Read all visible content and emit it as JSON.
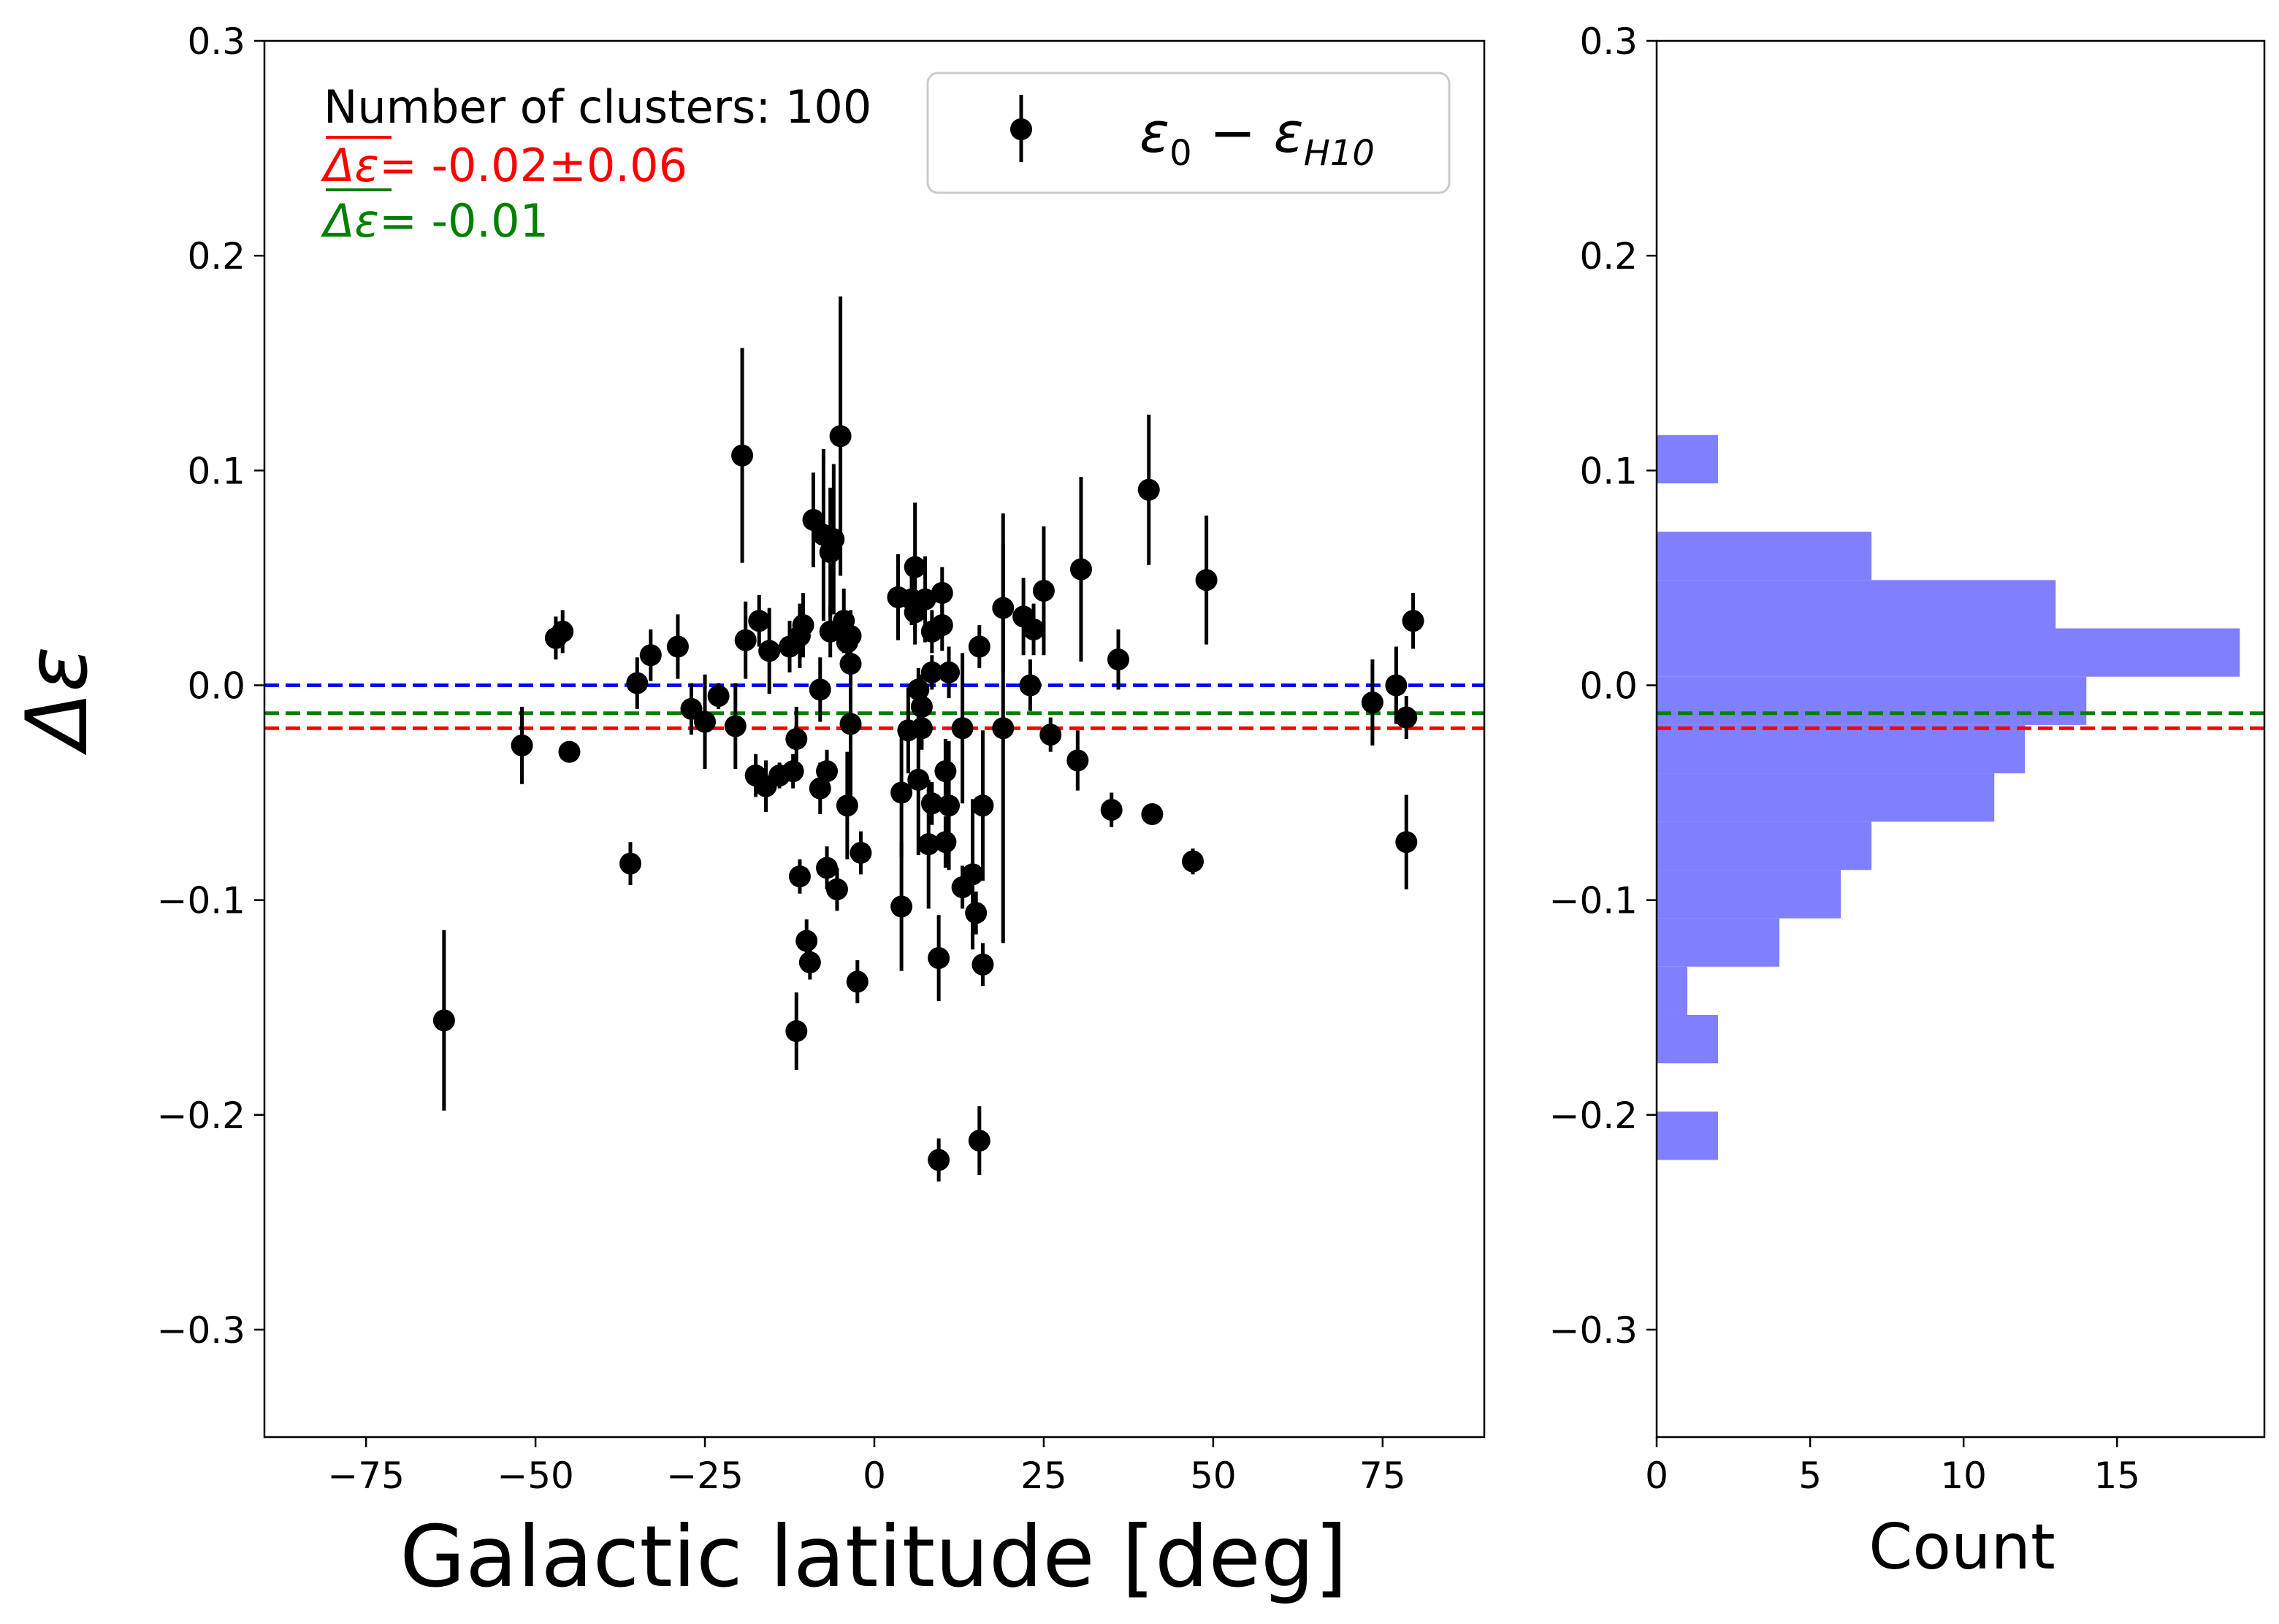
{
  "chart_data": [
    {
      "type": "scatter",
      "xlabel": "Galactic latitude [deg]",
      "ylabel": "Δε",
      "xlim": [
        -90,
        90
      ],
      "ylim": [
        -0.35,
        0.3
      ],
      "xticks": [
        -75,
        -50,
        -25,
        0,
        25,
        50,
        75
      ],
      "xtick_labels": [
        "−75",
        "−50",
        "−25",
        "0",
        "25",
        "50",
        "75"
      ],
      "yticks": [
        -0.3,
        -0.2,
        -0.1,
        0.0,
        0.1,
        0.2,
        0.3
      ],
      "ytick_labels": [
        "−0.3",
        "−0.2",
        "−0.1",
        "0.0",
        "0.1",
        "0.2",
        "0.3"
      ],
      "grid": false,
      "legend": {
        "placement": "upper right",
        "entries": [
          "ε0 − εH10"
        ]
      },
      "annotations": {
        "count": "Number of clusters: 100",
        "mean": "Δε= -0.02±0.06",
        "median": "Δε= -0.01",
        "mean_symbol": "Δε",
        "median_symbol": "Δε",
        "mean_value": "= -0.02±0.06",
        "median_value": "= -0.01"
      },
      "reference_lines": [
        {
          "y": 0.0,
          "color": "#0000ff",
          "style": "dashed"
        },
        {
          "y": -0.013,
          "color": "#008000",
          "style": "dashed"
        },
        {
          "y": -0.02,
          "color": "#ff0000",
          "style": "dashed"
        }
      ],
      "series": [
        {
          "marker": "circle",
          "color": "#000000",
          "points": [
            {
              "x": -63.5,
              "y": -0.156,
              "err": 0.042
            },
            {
              "x": -52,
              "y": -0.028,
              "err": 0.018
            },
            {
              "x": -47,
              "y": 0.022,
              "err": 0.01
            },
            {
              "x": -46,
              "y": 0.025,
              "err": 0.01
            },
            {
              "x": -45,
              "y": -0.031,
              "err": 0.004
            },
            {
              "x": -36,
              "y": -0.083,
              "err": 0.01
            },
            {
              "x": -35,
              "y": 0.001,
              "err": 0.012
            },
            {
              "x": -33,
              "y": 0.014,
              "err": 0.012
            },
            {
              "x": -29,
              "y": 0.018,
              "err": 0.015
            },
            {
              "x": -27,
              "y": -0.011,
              "err": 0.012
            },
            {
              "x": -25,
              "y": -0.017,
              "err": 0.022
            },
            {
              "x": -23,
              "y": -0.005,
              "err": 0.006
            },
            {
              "x": -20.5,
              "y": -0.019,
              "err": 0.02
            },
            {
              "x": -19.5,
              "y": 0.107,
              "err": 0.05
            },
            {
              "x": -19,
              "y": 0.021,
              "err": 0.018
            },
            {
              "x": -17.5,
              "y": -0.042,
              "err": 0.01
            },
            {
              "x": -17,
              "y": 0.03,
              "err": 0.012
            },
            {
              "x": -16,
              "y": -0.047,
              "err": 0.012
            },
            {
              "x": -15.5,
              "y": 0.016,
              "err": 0.02
            },
            {
              "x": -14,
              "y": -0.042,
              "err": 0.006
            },
            {
              "x": -12.5,
              "y": 0.018,
              "err": 0.012
            },
            {
              "x": -12,
              "y": -0.04,
              "err": 0.008
            },
            {
              "x": -11.5,
              "y": -0.161,
              "err": 0.018
            },
            {
              "x": -11.5,
              "y": -0.025,
              "err": 0.015
            },
            {
              "x": -11,
              "y": -0.089,
              "err": 0.008
            },
            {
              "x": -11,
              "y": 0.023,
              "err": 0.015
            },
            {
              "x": -10.5,
              "y": 0.028,
              "err": 0.015
            },
            {
              "x": -10,
              "y": -0.119,
              "err": 0.01
            },
            {
              "x": -9.5,
              "y": -0.129,
              "err": 0.008
            },
            {
              "x": -9,
              "y": 0.077,
              "err": 0.022
            },
            {
              "x": -8,
              "y": -0.048,
              "err": 0.012
            },
            {
              "x": -8,
              "y": -0.002,
              "err": 0.015
            },
            {
              "x": -7.5,
              "y": 0.07,
              "err": 0.04
            },
            {
              "x": -7,
              "y": -0.085,
              "err": 0.01
            },
            {
              "x": -7,
              "y": -0.04,
              "err": 0.01
            },
            {
              "x": -6.5,
              "y": 0.062,
              "err": 0.03
            },
            {
              "x": -6.5,
              "y": 0.025,
              "err": 0.012
            },
            {
              "x": -6,
              "y": 0.068,
              "err": 0.035
            },
            {
              "x": -5.5,
              "y": -0.095,
              "err": 0.01
            },
            {
              "x": -5,
              "y": 0.116,
              "err": 0.065
            },
            {
              "x": -4.5,
              "y": 0.03,
              "err": 0.015
            },
            {
              "x": -4,
              "y": 0.02,
              "err": 0.01
            },
            {
              "x": -4,
              "y": -0.056,
              "err": 0.025
            },
            {
              "x": -3.5,
              "y": 0.023,
              "err": 0.012
            },
            {
              "x": -3.5,
              "y": 0.01,
              "err": 0.01
            },
            {
              "x": -3.5,
              "y": -0.018,
              "err": 0.035
            },
            {
              "x": -2.5,
              "y": -0.138,
              "err": 0.01
            },
            {
              "x": -2,
              "y": -0.078,
              "err": 0.01
            },
            {
              "x": 3.5,
              "y": 0.041,
              "err": 0.02
            },
            {
              "x": 4,
              "y": -0.103,
              "err": 0.03
            },
            {
              "x": 4,
              "y": -0.05,
              "err": 0.03
            },
            {
              "x": 5,
              "y": -0.021,
              "err": 0.02
            },
            {
              "x": 5.5,
              "y": 0.04,
              "err": 0.012
            },
            {
              "x": 6,
              "y": 0.055,
              "err": 0.03
            },
            {
              "x": 6,
              "y": 0.034,
              "err": 0.015
            },
            {
              "x": 6.5,
              "y": -0.002,
              "err": 0.01
            },
            {
              "x": 6.5,
              "y": -0.044,
              "err": 0.035
            },
            {
              "x": 7,
              "y": -0.01,
              "err": 0.015
            },
            {
              "x": 7,
              "y": -0.02,
              "err": 0.01
            },
            {
              "x": 7.5,
              "y": 0.04,
              "err": 0.02
            },
            {
              "x": 8,
              "y": -0.074,
              "err": 0.03
            },
            {
              "x": 8.5,
              "y": 0.006,
              "err": 0.008
            },
            {
              "x": 8.5,
              "y": 0.025,
              "err": 0.01
            },
            {
              "x": 8.5,
              "y": -0.055,
              "err": 0.01
            },
            {
              "x": 9.5,
              "y": -0.221,
              "err": 0.01
            },
            {
              "x": 9.5,
              "y": -0.127,
              "err": 0.02
            },
            {
              "x": 10,
              "y": 0.028,
              "err": 0.012
            },
            {
              "x": 10,
              "y": 0.043,
              "err": 0.012
            },
            {
              "x": 10.5,
              "y": -0.04,
              "err": 0.015
            },
            {
              "x": 10.5,
              "y": -0.073,
              "err": 0.012
            },
            {
              "x": 11,
              "y": -0.056,
              "err": 0.03
            },
            {
              "x": 11,
              "y": 0.006,
              "err": 0.012
            },
            {
              "x": 13,
              "y": -0.094,
              "err": 0.01
            },
            {
              "x": 13,
              "y": -0.02,
              "err": 0.035
            },
            {
              "x": 14.5,
              "y": -0.088,
              "err": 0.035
            },
            {
              "x": 15,
              "y": -0.106,
              "err": 0.01
            },
            {
              "x": 15.5,
              "y": -0.212,
              "err": 0.016
            },
            {
              "x": 15.5,
              "y": 0.018,
              "err": 0.01
            },
            {
              "x": 16,
              "y": -0.056,
              "err": 0.035
            },
            {
              "x": 16,
              "y": -0.13,
              "err": 0.01
            },
            {
              "x": 19,
              "y": -0.02,
              "err": 0.1
            },
            {
              "x": 19,
              "y": 0.036,
              "err": 0.03
            },
            {
              "x": 22,
              "y": 0.032,
              "err": 0.018
            },
            {
              "x": 23,
              "y": 0.0,
              "err": 0.012
            },
            {
              "x": 23.5,
              "y": 0.026,
              "err": 0.012
            },
            {
              "x": 25,
              "y": 0.044,
              "err": 0.03
            },
            {
              "x": 26,
              "y": -0.023,
              "err": 0.008
            },
            {
              "x": 30,
              "y": -0.035,
              "err": 0.014
            },
            {
              "x": 30.5,
              "y": 0.054,
              "err": 0.043
            },
            {
              "x": 35,
              "y": -0.058,
              "err": 0.008
            },
            {
              "x": 36,
              "y": 0.012,
              "err": 0.014
            },
            {
              "x": 40.5,
              "y": 0.091,
              "err": 0.035
            },
            {
              "x": 41,
              "y": -0.06,
              "err": 0.005
            },
            {
              "x": 47,
              "y": -0.082,
              "err": 0.006
            },
            {
              "x": 49,
              "y": 0.049,
              "err": 0.03
            },
            {
              "x": 73.5,
              "y": -0.008,
              "err": 0.02
            },
            {
              "x": 77,
              "y": 0.0,
              "err": 0.018
            },
            {
              "x": 78.5,
              "y": -0.015,
              "err": 0.01
            },
            {
              "x": 78.5,
              "y": -0.073,
              "err": 0.022
            },
            {
              "x": 79.5,
              "y": 0.03,
              "err": 0.013
            }
          ]
        }
      ]
    },
    {
      "type": "bar",
      "orientation": "horizontal",
      "xlabel": "Count",
      "ylabel": "",
      "xlim": [
        0,
        19.8
      ],
      "ylim": [
        -0.35,
        0.3
      ],
      "xticks": [
        0,
        5,
        10,
        15
      ],
      "xtick_labels": [
        "0",
        "5",
        "10",
        "15"
      ],
      "yticks": [
        -0.3,
        -0.2,
        -0.1,
        0.0,
        0.1,
        0.2,
        0.3
      ],
      "ytick_labels": [
        "−0.3",
        "−0.2",
        "−0.1",
        "0.0",
        "0.1",
        "0.2",
        "0.3"
      ],
      "grid": false,
      "color": "#8080ff",
      "bin_edges": [
        -0.221,
        -0.1985,
        -0.176,
        -0.1535,
        -0.131,
        -0.1085,
        -0.086,
        -0.0635,
        -0.041,
        -0.0185,
        0.004,
        0.0265,
        0.049,
        0.0715,
        0.094,
        0.1165
      ],
      "counts": [
        2,
        0,
        2,
        1,
        4,
        6,
        7,
        11,
        12,
        14,
        19,
        13,
        7,
        0,
        2
      ],
      "reference_lines": [
        {
          "y": -0.013,
          "color": "#008000",
          "style": "dashed"
        },
        {
          "y": -0.02,
          "color": "#ff0000",
          "style": "dashed"
        }
      ]
    }
  ]
}
